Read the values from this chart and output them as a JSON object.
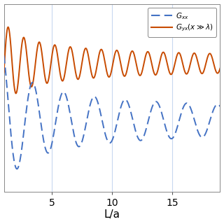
{
  "title": "",
  "xlabel": "L/a",
  "ylabel": "",
  "xlim": [
    1,
    19
  ],
  "ylim": [
    -1.15,
    1.15
  ],
  "xticks": [
    5,
    10,
    15
  ],
  "legend_label_blue": "$G_{xx}$",
  "legend_label_orange": "$G_{yx}(x \\gg \\lambda)$",
  "orange_color": "#C84B00",
  "blue_color": "#4472C4",
  "bg_color": "#FFFFFF",
  "grid_color": "#C8D8F0",
  "figsize": [
    3.2,
    3.2
  ],
  "dpi": 100
}
